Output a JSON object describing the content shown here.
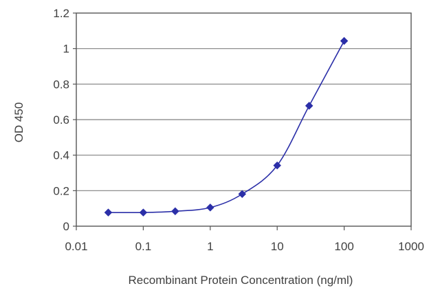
{
  "chart_data": {
    "type": "line",
    "title": "",
    "xlabel": "Recombinant Protein Concentration (ng/ml)",
    "ylabel": "OD 450",
    "x_scale": "log",
    "xlim": [
      0.01,
      1000
    ],
    "ylim": [
      0,
      1.2
    ],
    "x_ticks": [
      0.01,
      0.1,
      1,
      10,
      100,
      1000
    ],
    "x_tick_labels": [
      "0.01",
      "0.1",
      "1",
      "10",
      "100",
      "1000"
    ],
    "y_ticks": [
      0,
      0.2,
      0.4,
      0.6,
      0.8,
      1,
      1.2
    ],
    "y_tick_labels": [
      "0",
      "0.2",
      "0.4",
      "0.6",
      "0.8",
      "1",
      "1.2"
    ],
    "grid": "horizontal",
    "legend": "none",
    "series": [
      {
        "x": [
          0.03,
          0.1,
          0.3,
          1,
          3,
          10,
          30,
          100
        ],
        "y": [
          0.077,
          0.077,
          0.084,
          0.105,
          0.181,
          0.342,
          0.678,
          1.043
        ],
        "marker": "diamond",
        "color": "#2b2fa8"
      }
    ],
    "colors": {
      "series": "#2b2fa8",
      "grid": "#808080",
      "axis": "#555555",
      "text": "#404040"
    }
  }
}
